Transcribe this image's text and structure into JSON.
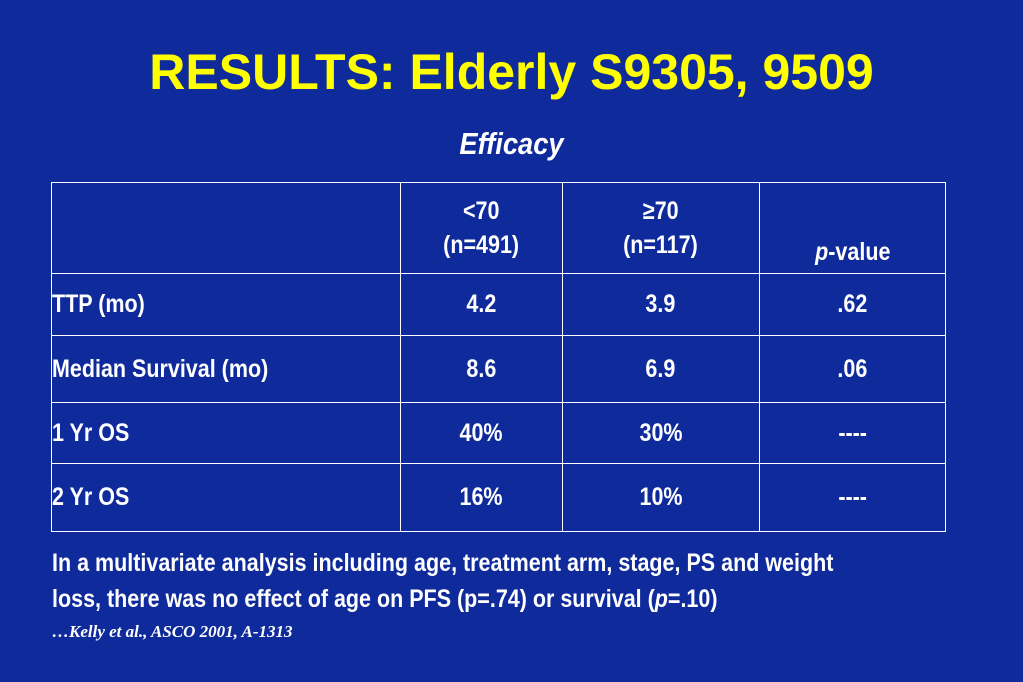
{
  "title": "RESULTS:  Elderly S9305, 9509",
  "subtitle": "Efficacy",
  "table": {
    "headers": [
      {
        "line1": "",
        "line2": ""
      },
      {
        "line1": "<70",
        "line2": "(n=491)"
      },
      {
        "line1": "≥70",
        "line2": "(n=117)"
      },
      {
        "line1": "",
        "line2_italic": "p",
        "line2": "-value"
      }
    ],
    "rows": [
      {
        "label": "TTP (mo)",
        "lt70": "4.2",
        "ge70": "3.9",
        "pvalue": ".62"
      },
      {
        "label": "Median Survival (mo)",
        "lt70": "8.6",
        "ge70": "6.9",
        "pvalue": ".06"
      },
      {
        "label": "1 Yr OS",
        "lt70": "40%",
        "ge70": "30%",
        "pvalue": "----"
      },
      {
        "label": "2 Yr OS",
        "lt70": "16%",
        "ge70": "10%",
        "pvalue": "----"
      }
    ]
  },
  "note": {
    "line1": "In a multivariate analysis including age, treatment arm, stage, PS and weight",
    "line2_a": "loss, there was no effect of age on PFS (p=.74) or survival (",
    "line2_italic": "p",
    "line2_b": "=.10)"
  },
  "citation": "…Kelly et al., ASCO 2001, A-1313",
  "colors": {
    "background": "#0F2A9A",
    "title": "#FFFF00",
    "text": "#FFFFFF"
  }
}
